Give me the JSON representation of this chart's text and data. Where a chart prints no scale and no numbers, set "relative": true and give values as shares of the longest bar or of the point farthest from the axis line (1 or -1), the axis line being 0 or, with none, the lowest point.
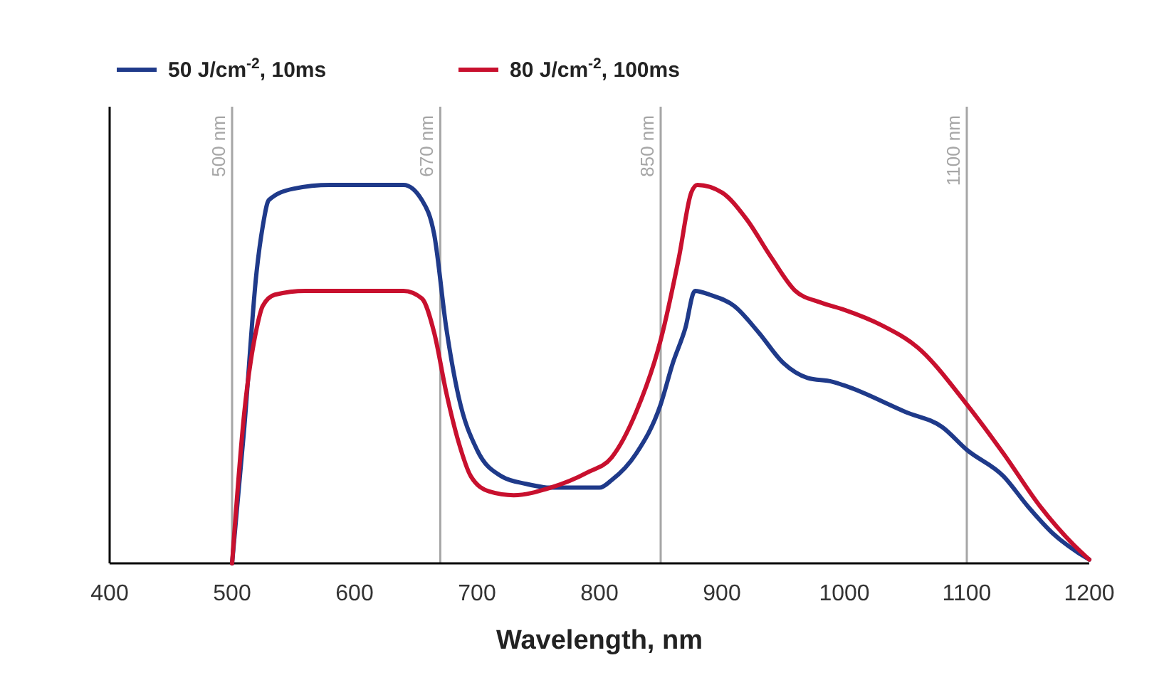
{
  "chart_data": {
    "type": "line",
    "xlabel": "Wavelength, nm",
    "relative": true,
    "xlim": [
      400,
      1200
    ],
    "xticks": [
      400,
      500,
      600,
      700,
      800,
      900,
      1000,
      1100,
      1200
    ],
    "grid": false,
    "legend": "top left",
    "line_style": "solid",
    "series": [
      {
        "name": "50 J/cm$^{-2}$, 10ms",
        "color": "#1f3a8a",
        "x": [
          500,
          510,
          520,
          525,
          530,
          550,
          580,
          640,
          655,
          665,
          675,
          685,
          700,
          720,
          740,
          760,
          800,
          810,
          830,
          850,
          860,
          870,
          878,
          890,
          910,
          930,
          950,
          970,
          990,
          1000,
          1050,
          1080,
          1100,
          1130,
          1150,
          1170,
          1190,
          1200
        ],
        "values": [
          0,
          0.36,
          0.77,
          0.89,
          0.96,
          0.99,
          1,
          1,
          0.96,
          0.87,
          0.62,
          0.44,
          0.3,
          0.23,
          0.21,
          0.2,
          0.2,
          0.22,
          0.29,
          0.42,
          0.53,
          0.62,
          0.72,
          0.71,
          0.68,
          0.61,
          0.53,
          0.49,
          0.48,
          0.47,
          0.4,
          0.36,
          0.3,
          0.23,
          0.15,
          0.08,
          0.03,
          0.01
        ]
      },
      {
        "name": "80 J/cm$^{-2}$, 100ms",
        "color": "#c8102e",
        "x": [
          500,
          510,
          520,
          525,
          535,
          560,
          640,
          655,
          665,
          675,
          685,
          695,
          710,
          730,
          760,
          790,
          810,
          830,
          850,
          865,
          875,
          880,
          900,
          920,
          940,
          960,
          980,
          1000,
          1030,
          1060,
          1100,
          1130,
          1160,
          1190,
          1200
        ],
        "values": [
          0,
          0.4,
          0.62,
          0.68,
          0.71,
          0.72,
          0.72,
          0.7,
          0.61,
          0.45,
          0.32,
          0.23,
          0.19,
          0.18,
          0.2,
          0.24,
          0.28,
          0.4,
          0.59,
          0.81,
          0.98,
          1,
          0.98,
          0.91,
          0.81,
          0.72,
          0.69,
          0.67,
          0.63,
          0.57,
          0.42,
          0.29,
          0.15,
          0.04,
          0.01
        ]
      }
    ],
    "ref_lines": [
      {
        "axis": "x",
        "value": 500,
        "label": "500 nm",
        "color": "#a6a6a6"
      },
      {
        "axis": "x",
        "value": 670,
        "label": "670 nm",
        "color": "#a6a6a6"
      },
      {
        "axis": "x",
        "value": 850,
        "label": "850 nm",
        "color": "#a6a6a6"
      },
      {
        "axis": "x",
        "value": 1100,
        "label": "1100 nm",
        "color": "#a6a6a6"
      }
    ]
  }
}
